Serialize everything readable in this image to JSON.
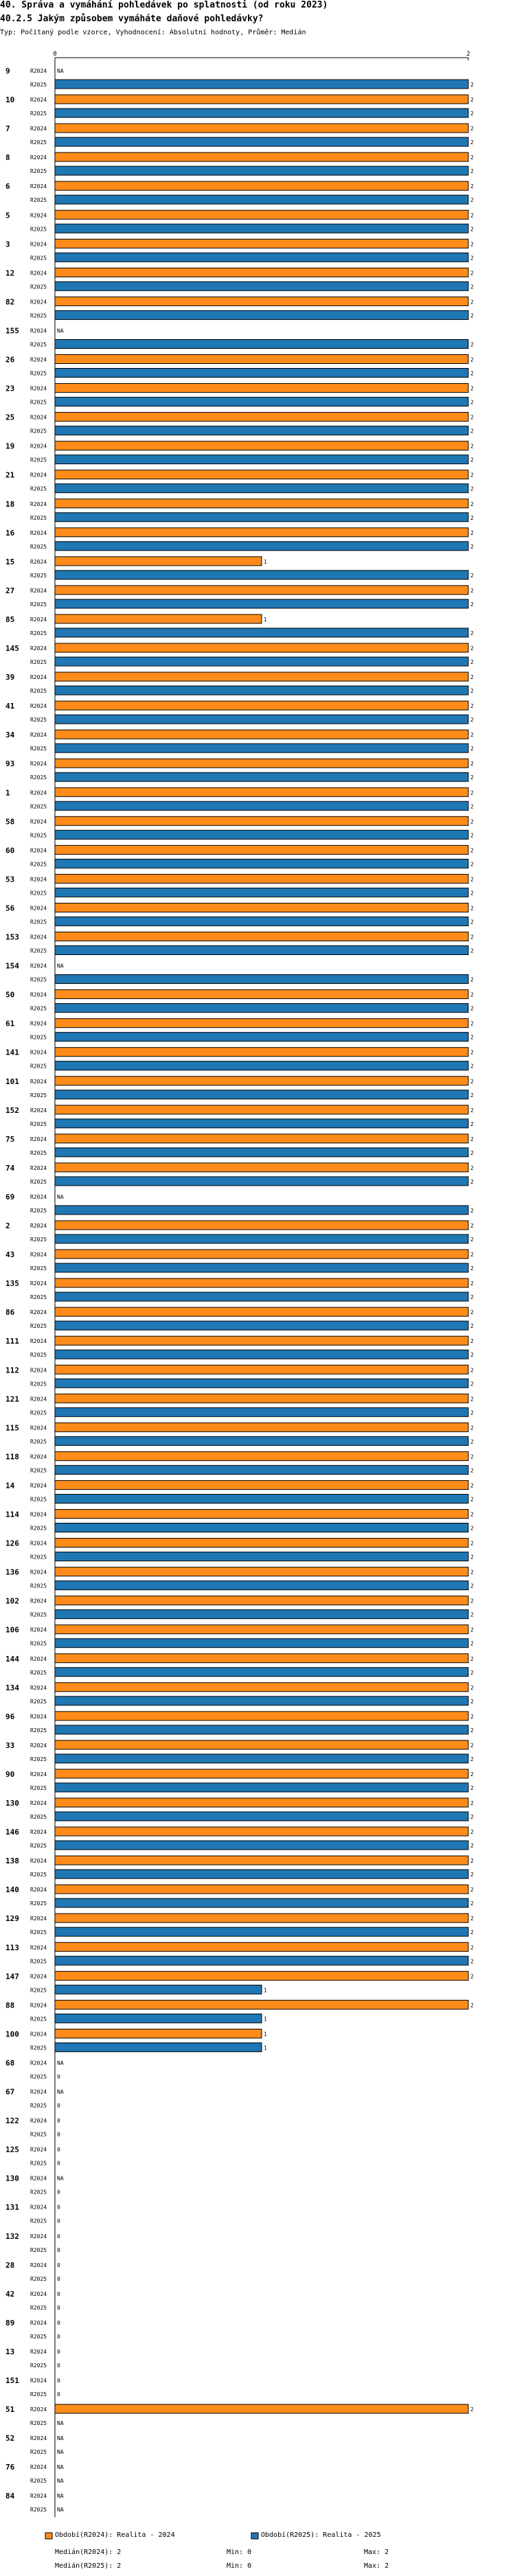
{
  "header": {
    "title": "40. Správa a vymáhání pohledávek po splatnosti (od roku 2023)",
    "question": "40.2.5 Jakým způsobem vymáháte daňové pohledávky?",
    "subtitle": "Typ: Počítaný podle vzorce, Vyhodnocení: Absolutní hodnoty, Průměr: Medián"
  },
  "colors": {
    "r2024": "#ff8c1a",
    "r2025": "#1f77b4",
    "border": "#000000"
  },
  "chart_data": {
    "type": "bar",
    "orientation": "horizontal",
    "xlim": [
      0,
      2
    ],
    "xticks": [
      "0",
      "2"
    ],
    "series_names": [
      "R2024",
      "R2025"
    ],
    "categories": [
      "9",
      "10",
      "7",
      "8",
      "6",
      "5",
      "3",
      "12",
      "82",
      "155",
      "26",
      "23",
      "25",
      "19",
      "21",
      "18",
      "16",
      "15",
      "27",
      "85",
      "145",
      "39",
      "41",
      "34",
      "93",
      "1",
      "58",
      "60",
      "53",
      "56",
      "153",
      "154",
      "50",
      "61",
      "141",
      "101",
      "152",
      "75",
      "74",
      "69",
      "2",
      "43",
      "135",
      "86",
      "111",
      "112",
      "121",
      "115",
      "118",
      "14",
      "114",
      "126",
      "136",
      "102",
      "106",
      "144",
      "134",
      "96",
      "33",
      "90",
      "130",
      "146",
      "138",
      "140",
      "129",
      "113",
      "147",
      "88",
      "100",
      "68",
      "67",
      "122",
      "125",
      "130",
      "131",
      "132",
      "28",
      "42",
      "89",
      "13",
      "151",
      "51",
      "52",
      "76",
      "84"
    ],
    "r2024": [
      null,
      2,
      2,
      2,
      2,
      2,
      2,
      2,
      2,
      null,
      2,
      2,
      2,
      2,
      2,
      2,
      2,
      1,
      2,
      1,
      2,
      2,
      2,
      2,
      2,
      2,
      2,
      2,
      2,
      2,
      2,
      null,
      2,
      2,
      2,
      2,
      2,
      2,
      2,
      null,
      2,
      2,
      2,
      2,
      2,
      2,
      2,
      2,
      2,
      2,
      2,
      2,
      2,
      2,
      2,
      2,
      2,
      2,
      2,
      2,
      2,
      2,
      2,
      2,
      2,
      2,
      2,
      2,
      1,
      null,
      null,
      0,
      0,
      null,
      0,
      0,
      0,
      0,
      0,
      0,
      0,
      2,
      null,
      null,
      null
    ],
    "r2025": [
      2,
      2,
      2,
      2,
      2,
      2,
      2,
      2,
      2,
      2,
      2,
      2,
      2,
      2,
      2,
      2,
      2,
      2,
      2,
      2,
      2,
      2,
      2,
      2,
      2,
      2,
      2,
      2,
      2,
      2,
      2,
      2,
      2,
      2,
      2,
      2,
      2,
      2,
      2,
      2,
      2,
      2,
      2,
      2,
      2,
      2,
      2,
      2,
      2,
      2,
      2,
      2,
      2,
      2,
      2,
      2,
      2,
      2,
      2,
      2,
      2,
      2,
      2,
      2,
      2,
      2,
      1,
      1,
      1,
      0,
      0,
      0,
      0,
      0,
      0,
      0,
      0,
      0,
      0,
      0,
      0,
      null,
      null,
      null,
      null
    ],
    "na_label": "NA"
  },
  "legend": {
    "r2024": "Období(R2024): Realita - 2024",
    "r2025": "Období(R2025): Realita - 2025"
  },
  "stats": {
    "r2024": {
      "median": "Medián(R2024): 2",
      "min": "Min: 0",
      "max": "Max: 2"
    },
    "r2025": {
      "median": "Medián(R2025): 2",
      "min": "Min: 0",
      "max": "Max: 2"
    }
  }
}
